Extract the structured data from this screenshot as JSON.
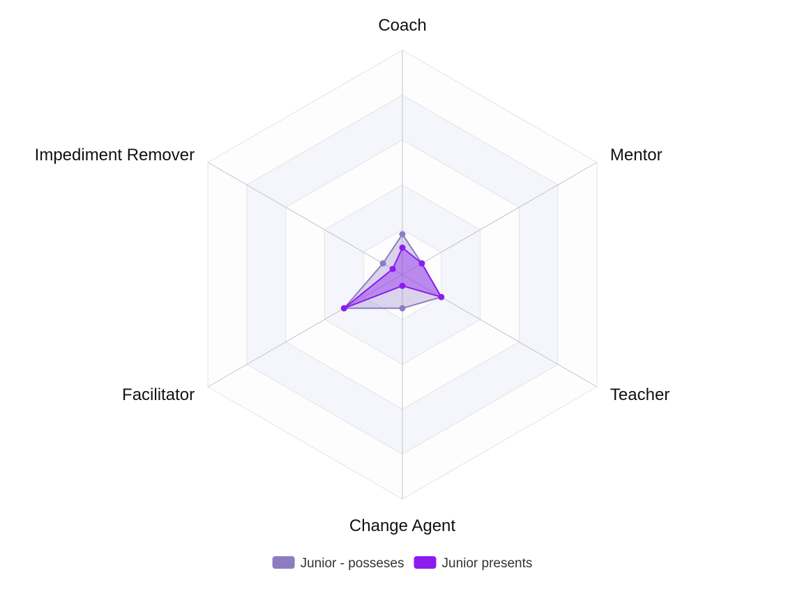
{
  "chart_data": {
    "type": "radar",
    "title": "",
    "axes": [
      "Coach",
      "Mentor",
      "Teacher",
      "Change Agent",
      "Facilitator",
      "Impediment Remover"
    ],
    "rlim": [
      0,
      5
    ],
    "rings": 5,
    "grid": true,
    "legend_position": "bottom",
    "series": [
      {
        "name": "Junior - posseses",
        "color": "#8e7cc3",
        "values": [
          0.9,
          0.5,
          1.0,
          0.75,
          1.5,
          0.5
        ]
      },
      {
        "name": "Junior presents",
        "color": "#8b1cf0",
        "values": [
          0.6,
          0.5,
          1.0,
          0.25,
          1.5,
          0.25
        ]
      }
    ]
  }
}
